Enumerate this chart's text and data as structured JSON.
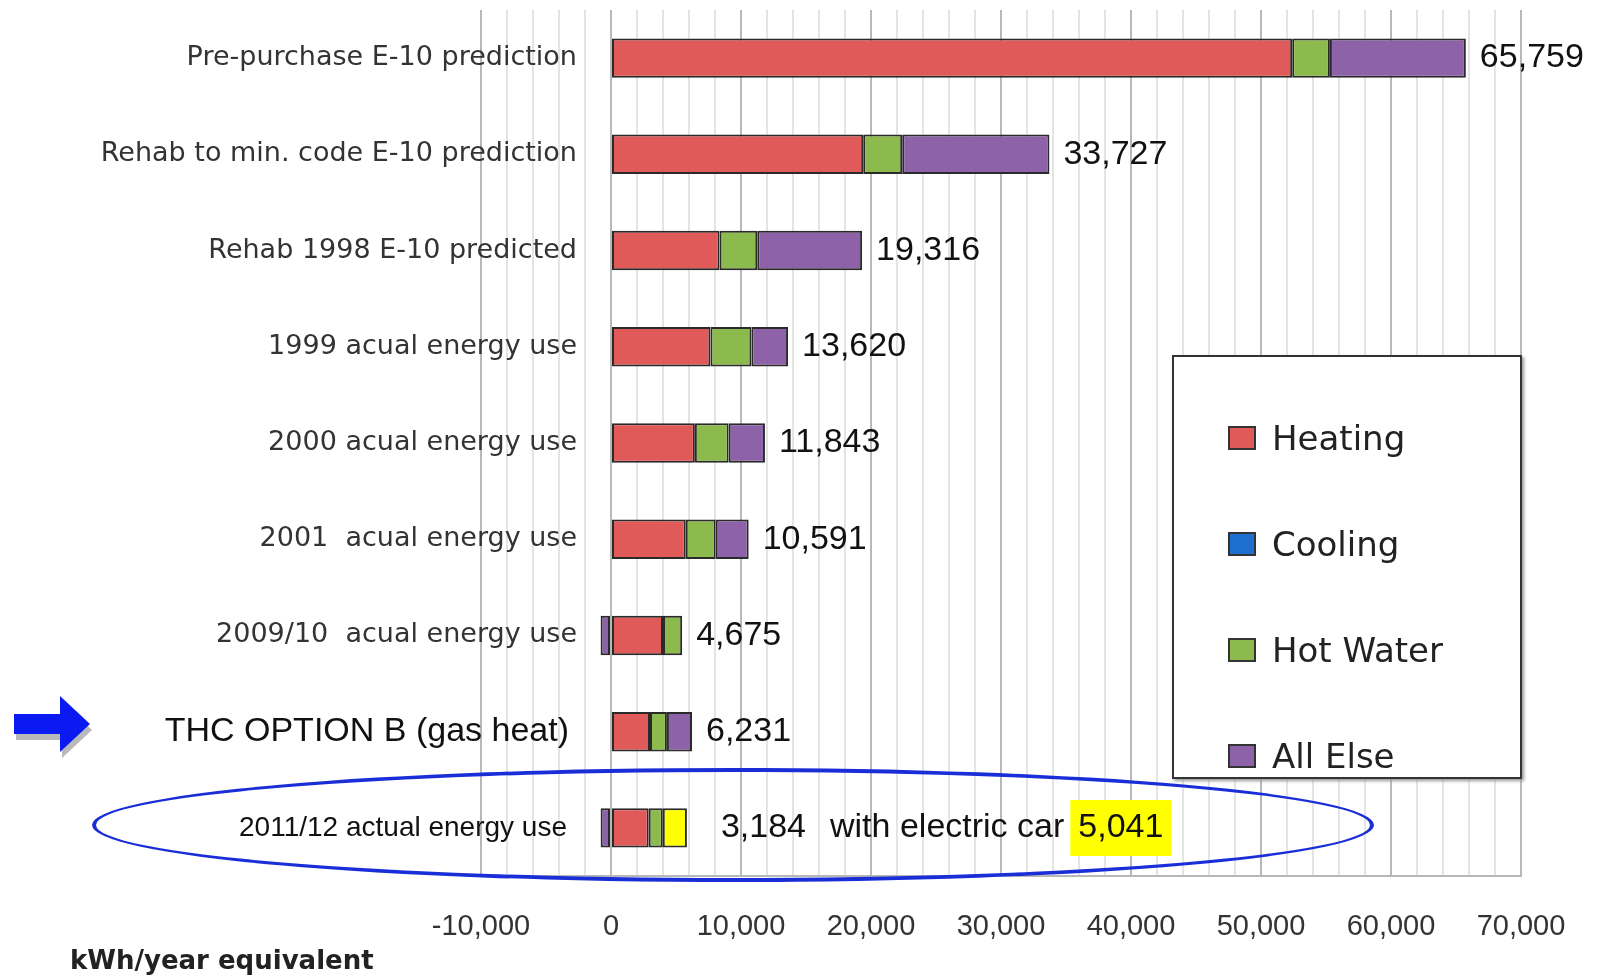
{
  "chart_data": {
    "type": "bar",
    "orientation": "horizontal",
    "stacked": true,
    "categories": [
      "Pre-purchase E-10 prediction",
      "Rehab to min. code E-10 prediction",
      "Rehab 1998 E-10 predicted",
      "1999 acual energy use",
      "2000 acual energy use",
      "2001  acual energy use",
      "2009/10  acual energy use",
      "THC OPTION B (gas heat)",
      "2011/12 actual energy use"
    ],
    "series": [
      {
        "name": "Heating",
        "color": "#e05a59",
        "values": [
          52400,
          19400,
          8350,
          7650,
          6450,
          5750,
          4000,
          3000,
          2900
        ]
      },
      {
        "name": "Cooling",
        "color": "#1f6fd1",
        "values": [
          0,
          0,
          0,
          0,
          0,
          0,
          0,
          0,
          0
        ]
      },
      {
        "name": "Hot Water",
        "color": "#8dba4c",
        "values": [
          2900,
          3000,
          2900,
          3150,
          2600,
          2300,
          1475,
          1300,
          1084
        ]
      },
      {
        "name": "All Else",
        "color": "#8e62a8",
        "values": [
          10459,
          11327,
          8066,
          2820,
          2793,
          2541,
          -800,
          1931,
          -800
        ]
      },
      {
        "color": "#ffff00",
        "values": [
          null,
          null,
          null,
          null,
          null,
          null,
          null,
          null,
          1857
        ]
      }
    ],
    "totals": [
      "65,759",
      "33,727",
      "19,316",
      "13,620",
      "11,843",
      "10,591",
      "4,675",
      "6,231",
      null
    ],
    "annotations": [
      "3,184",
      "with electric car",
      "5,041"
    ],
    "xlabel": "kWh/year equivalent",
    "xlim": [
      -10000,
      70000
    ],
    "xticks": [
      {
        "value": -10000,
        "label": "-10,000"
      },
      {
        "value": -8000,
        "label": null
      },
      {
        "value": -6000,
        "label": null
      },
      {
        "value": -4000,
        "label": null
      },
      {
        "value": -2000,
        "label": null
      },
      0,
      {
        "value": 2000,
        "label": null
      },
      {
        "value": 4000,
        "label": null
      },
      {
        "value": 6000,
        "label": null
      },
      {
        "value": 8000,
        "label": null
      },
      {
        "value": 10000,
        "label": "10,000"
      },
      {
        "value": 12000,
        "label": null
      },
      {
        "value": 14000,
        "label": null
      },
      {
        "value": 16000,
        "label": null
      },
      {
        "value": 18000,
        "label": null
      },
      {
        "value": 20000,
        "label": "20,000"
      },
      {
        "value": 22000,
        "label": null
      },
      {
        "value": 24000,
        "label": null
      },
      {
        "value": 26000,
        "label": null
      },
      {
        "value": 28000,
        "label": null
      },
      {
        "value": 30000,
        "label": "30,000"
      },
      {
        "value": 32000,
        "label": null
      },
      {
        "value": 34000,
        "label": null
      },
      {
        "value": 36000,
        "label": null
      },
      {
        "value": 38000,
        "label": null
      },
      {
        "value": 40000,
        "label": "40,000"
      },
      {
        "value": 42000,
        "label": null
      },
      {
        "value": 44000,
        "label": null
      },
      {
        "value": 46000,
        "label": null
      },
      {
        "value": 48000,
        "label": null
      },
      {
        "value": 50000,
        "label": "50,000"
      },
      {
        "value": 52000,
        "label": null
      },
      {
        "value": 54000,
        "label": null
      },
      {
        "value": 56000,
        "label": null
      },
      {
        "value": 58000,
        "label": null
      },
      {
        "value": 60000,
        "label": "60,000"
      },
      {
        "value": 62000,
        "label": null
      },
      {
        "value": 64000,
        "label": null
      },
      {
        "value": 66000,
        "label": null
      },
      {
        "value": 68000,
        "label": null
      },
      {
        "value": 70000,
        "label": "70,000"
      }
    ],
    "grid": "x",
    "legend": "right"
  }
}
